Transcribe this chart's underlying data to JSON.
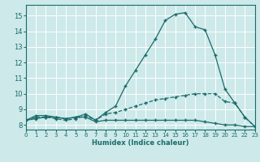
{
  "xlabel": "Humidex (Indice chaleur)",
  "xlim": [
    0,
    23
  ],
  "ylim": [
    7.7,
    15.7
  ],
  "yticks": [
    8,
    9,
    10,
    11,
    12,
    13,
    14,
    15
  ],
  "xticks": [
    0,
    1,
    2,
    3,
    4,
    5,
    6,
    7,
    8,
    9,
    10,
    11,
    12,
    13,
    14,
    15,
    16,
    17,
    18,
    19,
    20,
    21,
    22,
    23
  ],
  "bg_color": "#cde9e9",
  "grid_color": "#ffffff",
  "line_color": "#1a6b6b",
  "lines": [
    {
      "x": [
        0,
        1,
        2,
        3,
        4,
        5,
        6,
        7,
        8,
        9,
        10,
        11,
        12,
        13,
        14,
        15,
        16,
        17,
        18,
        19,
        20,
        21,
        22,
        23
      ],
      "y": [
        8.3,
        8.6,
        8.6,
        8.5,
        8.4,
        8.5,
        8.7,
        8.3,
        8.8,
        9.2,
        10.5,
        11.5,
        12.5,
        13.5,
        14.7,
        15.1,
        15.2,
        14.3,
        14.1,
        12.5,
        10.3,
        9.4,
        8.5,
        7.9
      ],
      "style": "-"
    },
    {
      "x": [
        0,
        1,
        2,
        3,
        4,
        5,
        6,
        7,
        8,
        9,
        10,
        11,
        12,
        13,
        14,
        15,
        16,
        17,
        18,
        19,
        20,
        21,
        22,
        23
      ],
      "y": [
        8.3,
        8.5,
        8.5,
        8.4,
        8.3,
        8.4,
        8.6,
        8.3,
        8.7,
        8.8,
        9.0,
        9.2,
        9.4,
        9.6,
        9.7,
        9.8,
        9.9,
        10.0,
        10.0,
        10.0,
        9.5,
        9.4,
        8.5,
        7.9
      ],
      "style": "--"
    },
    {
      "x": [
        0,
        1,
        2,
        3,
        4,
        5,
        6,
        7,
        8,
        9,
        10,
        11,
        12,
        13,
        14,
        15,
        16,
        17,
        18,
        19,
        20,
        21,
        22,
        23
      ],
      "y": [
        8.3,
        8.4,
        8.5,
        8.5,
        8.4,
        8.5,
        8.5,
        8.2,
        8.3,
        8.3,
        8.3,
        8.3,
        8.3,
        8.3,
        8.3,
        8.3,
        8.3,
        8.3,
        8.2,
        8.1,
        8.0,
        8.0,
        7.9,
        7.9
      ],
      "style": "-"
    }
  ]
}
